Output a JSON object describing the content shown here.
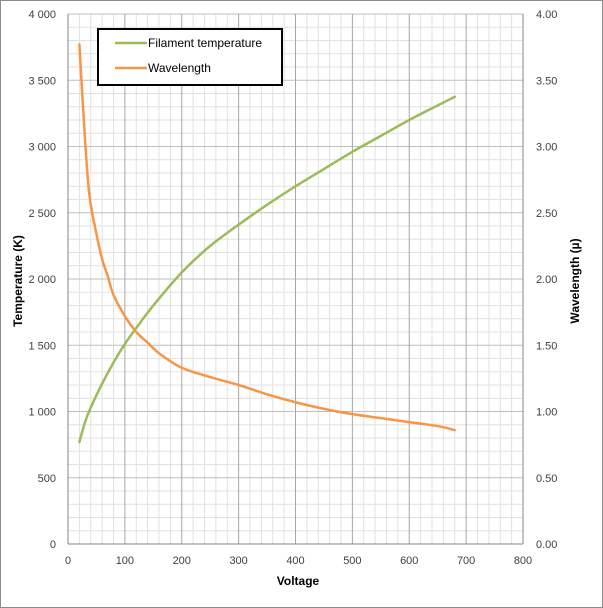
{
  "chart_data": {
    "type": "line",
    "xlabel": "Voltage",
    "ylabel_left": "Temperature (K)",
    "ylabel_right": "Wavelength (µ)",
    "xlim": [
      0,
      800
    ],
    "ylim_left": [
      0,
      4000
    ],
    "ylim_right": [
      0,
      4.0
    ],
    "x_ticks": [
      0,
      100,
      200,
      300,
      400,
      500,
      600,
      700,
      800
    ],
    "x_tick_labels": [
      "0",
      "100",
      "200",
      "300",
      "400",
      "500",
      "600",
      "700",
      "800"
    ],
    "y_left_ticks": [
      0,
      500,
      1000,
      1500,
      2000,
      2500,
      3000,
      3500,
      4000
    ],
    "y_left_tick_labels": [
      "0",
      "500",
      "1 000",
      "1 500",
      "2 000",
      "2 500",
      "3 000",
      "3 500",
      "4 000"
    ],
    "y_right_ticks": [
      0,
      0.5,
      1.0,
      1.5,
      2.0,
      2.5,
      3.0,
      3.5,
      4.0
    ],
    "y_right_tick_labels": [
      "0.00",
      "0.50",
      "1.00",
      "1.50",
      "2.00",
      "2.50",
      "3.00",
      "3.50",
      "4.00"
    ],
    "grid": true,
    "legend_position": "top-left",
    "series": [
      {
        "name": "Filament temperature",
        "axis": "left",
        "color": "#9BBB59",
        "x": [
          20,
          30,
          40,
          60,
          80,
          100,
          120,
          150,
          200,
          250,
          300,
          350,
          400,
          450,
          500,
          550,
          600,
          650,
          680
        ],
        "y": [
          770,
          920,
          1030,
          1210,
          1370,
          1510,
          1630,
          1800,
          2050,
          2250,
          2410,
          2560,
          2700,
          2830,
          2960,
          3080,
          3200,
          3310,
          3375
        ]
      },
      {
        "name": "Wavelength",
        "axis": "right",
        "color": "#F79646",
        "x": [
          20,
          25,
          30,
          35,
          40,
          50,
          60,
          70,
          80,
          100,
          120,
          140,
          160,
          200,
          250,
          300,
          350,
          400,
          450,
          500,
          550,
          600,
          650,
          680
        ],
        "y": [
          3.77,
          3.4,
          3.05,
          2.75,
          2.56,
          2.34,
          2.15,
          2.02,
          1.88,
          1.72,
          1.6,
          1.52,
          1.44,
          1.33,
          1.26,
          1.2,
          1.13,
          1.07,
          1.02,
          0.98,
          0.95,
          0.92,
          0.89,
          0.86
        ]
      }
    ]
  }
}
